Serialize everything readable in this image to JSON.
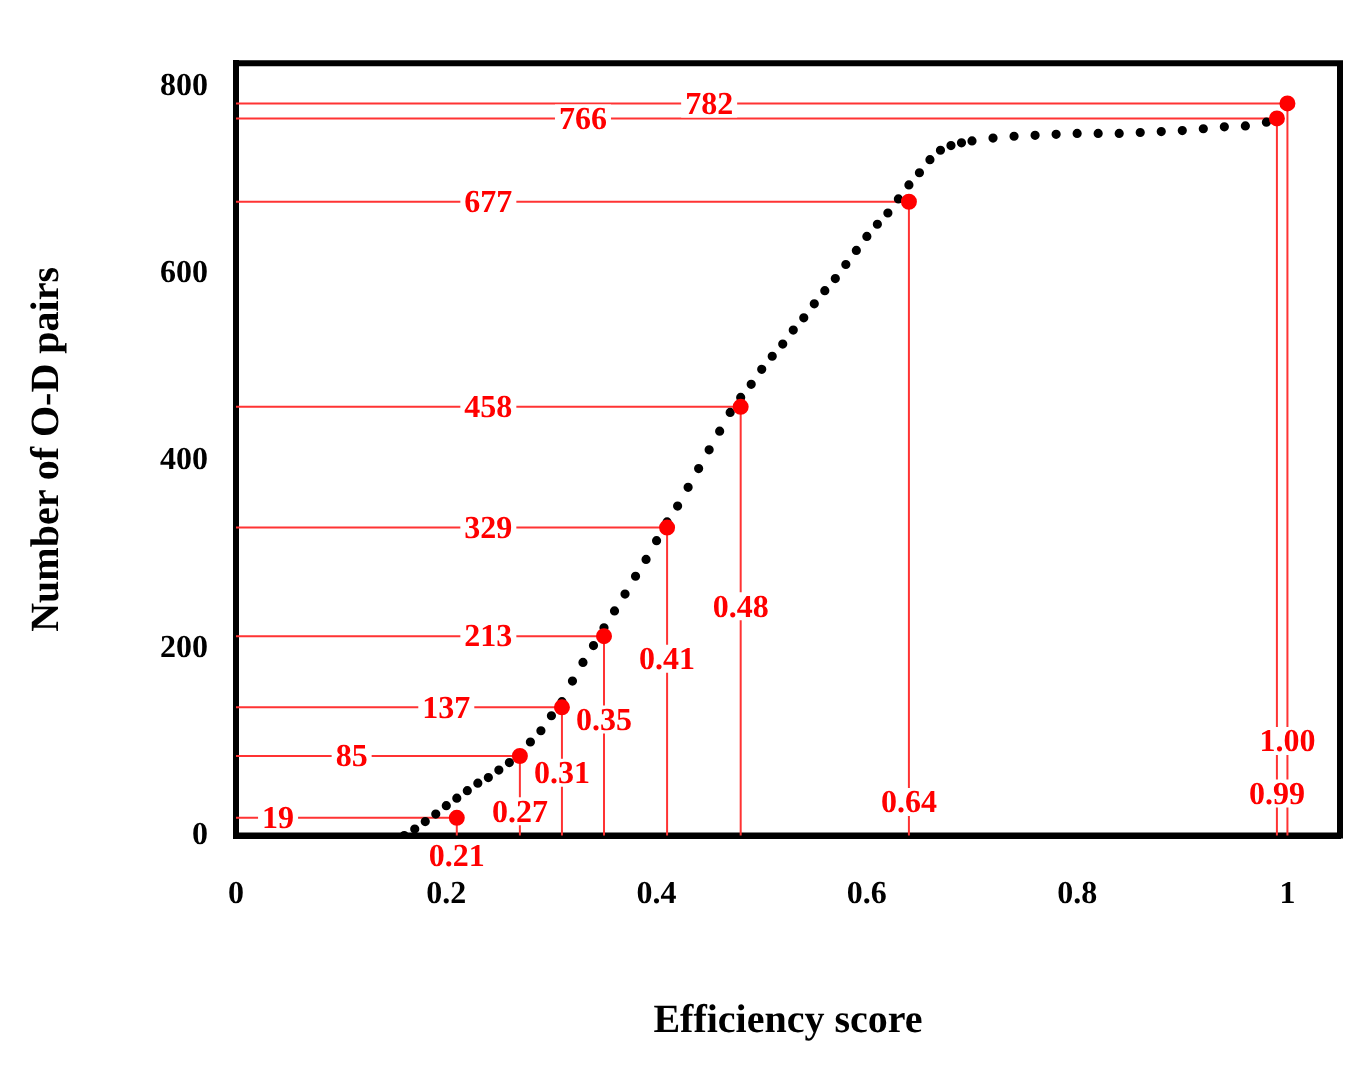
{
  "chart_data": {
    "type": "scatter",
    "xlabel": "Efficiency score",
    "ylabel": "Number of O-D pairs",
    "xlim": [
      0,
      1.05
    ],
    "ylim": [
      0,
      825
    ],
    "xticks": [
      0,
      0.2,
      0.4,
      0.6,
      0.8,
      1
    ],
    "yticks": [
      0,
      200,
      400,
      600,
      800
    ],
    "marker": "circle",
    "series": [
      {
        "type": "line",
        "marker": "none",
        "color": "#ff3333",
        "x": [
          0,
          0.21,
          0.21
        ],
        "values": [
          19,
          19,
          0
        ]
      },
      {
        "type": "line",
        "marker": "none",
        "color": "#ff3333",
        "x": [
          0,
          0.27,
          0.27
        ],
        "values": [
          85,
          85,
          0
        ]
      },
      {
        "type": "line",
        "marker": "none",
        "color": "#ff3333",
        "x": [
          0,
          0.31,
          0.31
        ],
        "values": [
          137,
          137,
          0
        ]
      },
      {
        "type": "line",
        "marker": "none",
        "color": "#ff3333",
        "x": [
          0,
          0.35,
          0.35
        ],
        "values": [
          213,
          213,
          0
        ]
      },
      {
        "type": "line",
        "marker": "none",
        "color": "#ff3333",
        "x": [
          0,
          0.41,
          0.41
        ],
        "values": [
          329,
          329,
          0
        ]
      },
      {
        "type": "line",
        "marker": "none",
        "color": "#ff3333",
        "x": [
          0,
          0.48,
          0.48
        ],
        "values": [
          458,
          458,
          0
        ]
      },
      {
        "type": "line",
        "marker": "none",
        "color": "#ff3333",
        "x": [
          0,
          0.64,
          0.64
        ],
        "values": [
          677,
          677,
          0
        ]
      },
      {
        "type": "line",
        "marker": "none",
        "color": "#ff3333",
        "x": [
          0,
          0.99,
          0.99
        ],
        "values": [
          766,
          766,
          0
        ]
      },
      {
        "type": "line",
        "marker": "none",
        "color": "#ff3333",
        "x": [
          0,
          1.0,
          1.0
        ],
        "values": [
          782,
          782,
          0
        ]
      },
      {
        "color": "#000000",
        "x": [
          0.16,
          0.17,
          0.18,
          0.19,
          0.2,
          0.21,
          0.22,
          0.23,
          0.24,
          0.25,
          0.26,
          0.28,
          0.29,
          0.3,
          0.31,
          0.32,
          0.33,
          0.34,
          0.35,
          0.36,
          0.37,
          0.38,
          0.39,
          0.4,
          0.41,
          0.42,
          0.43,
          0.44,
          0.45,
          0.46,
          0.47,
          0.48,
          0.49,
          0.5,
          0.51,
          0.52,
          0.53,
          0.54,
          0.55,
          0.56,
          0.57,
          0.58,
          0.59,
          0.6,
          0.61,
          0.62,
          0.63,
          0.64,
          0.65,
          0.66,
          0.67,
          0.68,
          0.69,
          0.7,
          0.72,
          0.74,
          0.76,
          0.78,
          0.8,
          0.82,
          0.84,
          0.86,
          0.88,
          0.9,
          0.92,
          0.94,
          0.96,
          0.98
        ],
        "values": [
          0,
          7,
          15,
          23,
          32,
          40,
          48,
          56,
          62,
          70,
          78,
          100,
          112,
          128,
          143,
          165,
          185,
          203,
          222,
          240,
          258,
          277,
          295,
          315,
          335,
          352,
          372,
          392,
          412,
          432,
          452,
          468,
          482,
          498,
          512,
          525,
          540,
          553,
          568,
          582,
          595,
          610,
          625,
          640,
          653,
          665,
          680,
          695,
          708,
          722,
          732,
          737,
          740,
          742,
          745,
          747,
          748,
          749,
          750,
          750,
          750,
          751,
          752,
          753,
          755,
          757,
          758,
          762
        ]
      },
      {
        "color": "#ff0000",
        "x": [
          0.21,
          0.27,
          0.31,
          0.35,
          0.41,
          0.48,
          0.64,
          0.99,
          1.0
        ],
        "values": [
          19,
          85,
          137,
          213,
          329,
          458,
          677,
          766,
          782
        ]
      }
    ],
    "annotations": [
      {
        "text": "19",
        "x": 0.04,
        "y": 19
      },
      {
        "text": "85",
        "x": 0.11,
        "y": 85
      },
      {
        "text": "137",
        "x": 0.2,
        "y": 137
      },
      {
        "text": "213",
        "x": 0.24,
        "y": 213
      },
      {
        "text": "329",
        "x": 0.24,
        "y": 329
      },
      {
        "text": "458",
        "x": 0.24,
        "y": 458
      },
      {
        "text": "677",
        "x": 0.24,
        "y": 677
      },
      {
        "text": "766",
        "x": 0.33,
        "y": 766
      },
      {
        "text": "782",
        "x": 0.45,
        "y": 782
      },
      {
        "text": "0.21",
        "x": 0.21,
        "y": 0
      },
      {
        "text": "0.27",
        "x": 0.27,
        "y": 26
      },
      {
        "text": "0.31",
        "x": 0.31,
        "y": 67
      },
      {
        "text": "0.35",
        "x": 0.35,
        "y": 124
      },
      {
        "text": "0.41",
        "x": 0.41,
        "y": 189
      },
      {
        "text": "0.48",
        "x": 0.48,
        "y": 245
      },
      {
        "text": "0.64",
        "x": 0.64,
        "y": 36
      },
      {
        "text": "0.99",
        "x": 0.99,
        "y": 45
      },
      {
        "text": "1.00",
        "x": 1.0,
        "y": 101
      }
    ]
  }
}
